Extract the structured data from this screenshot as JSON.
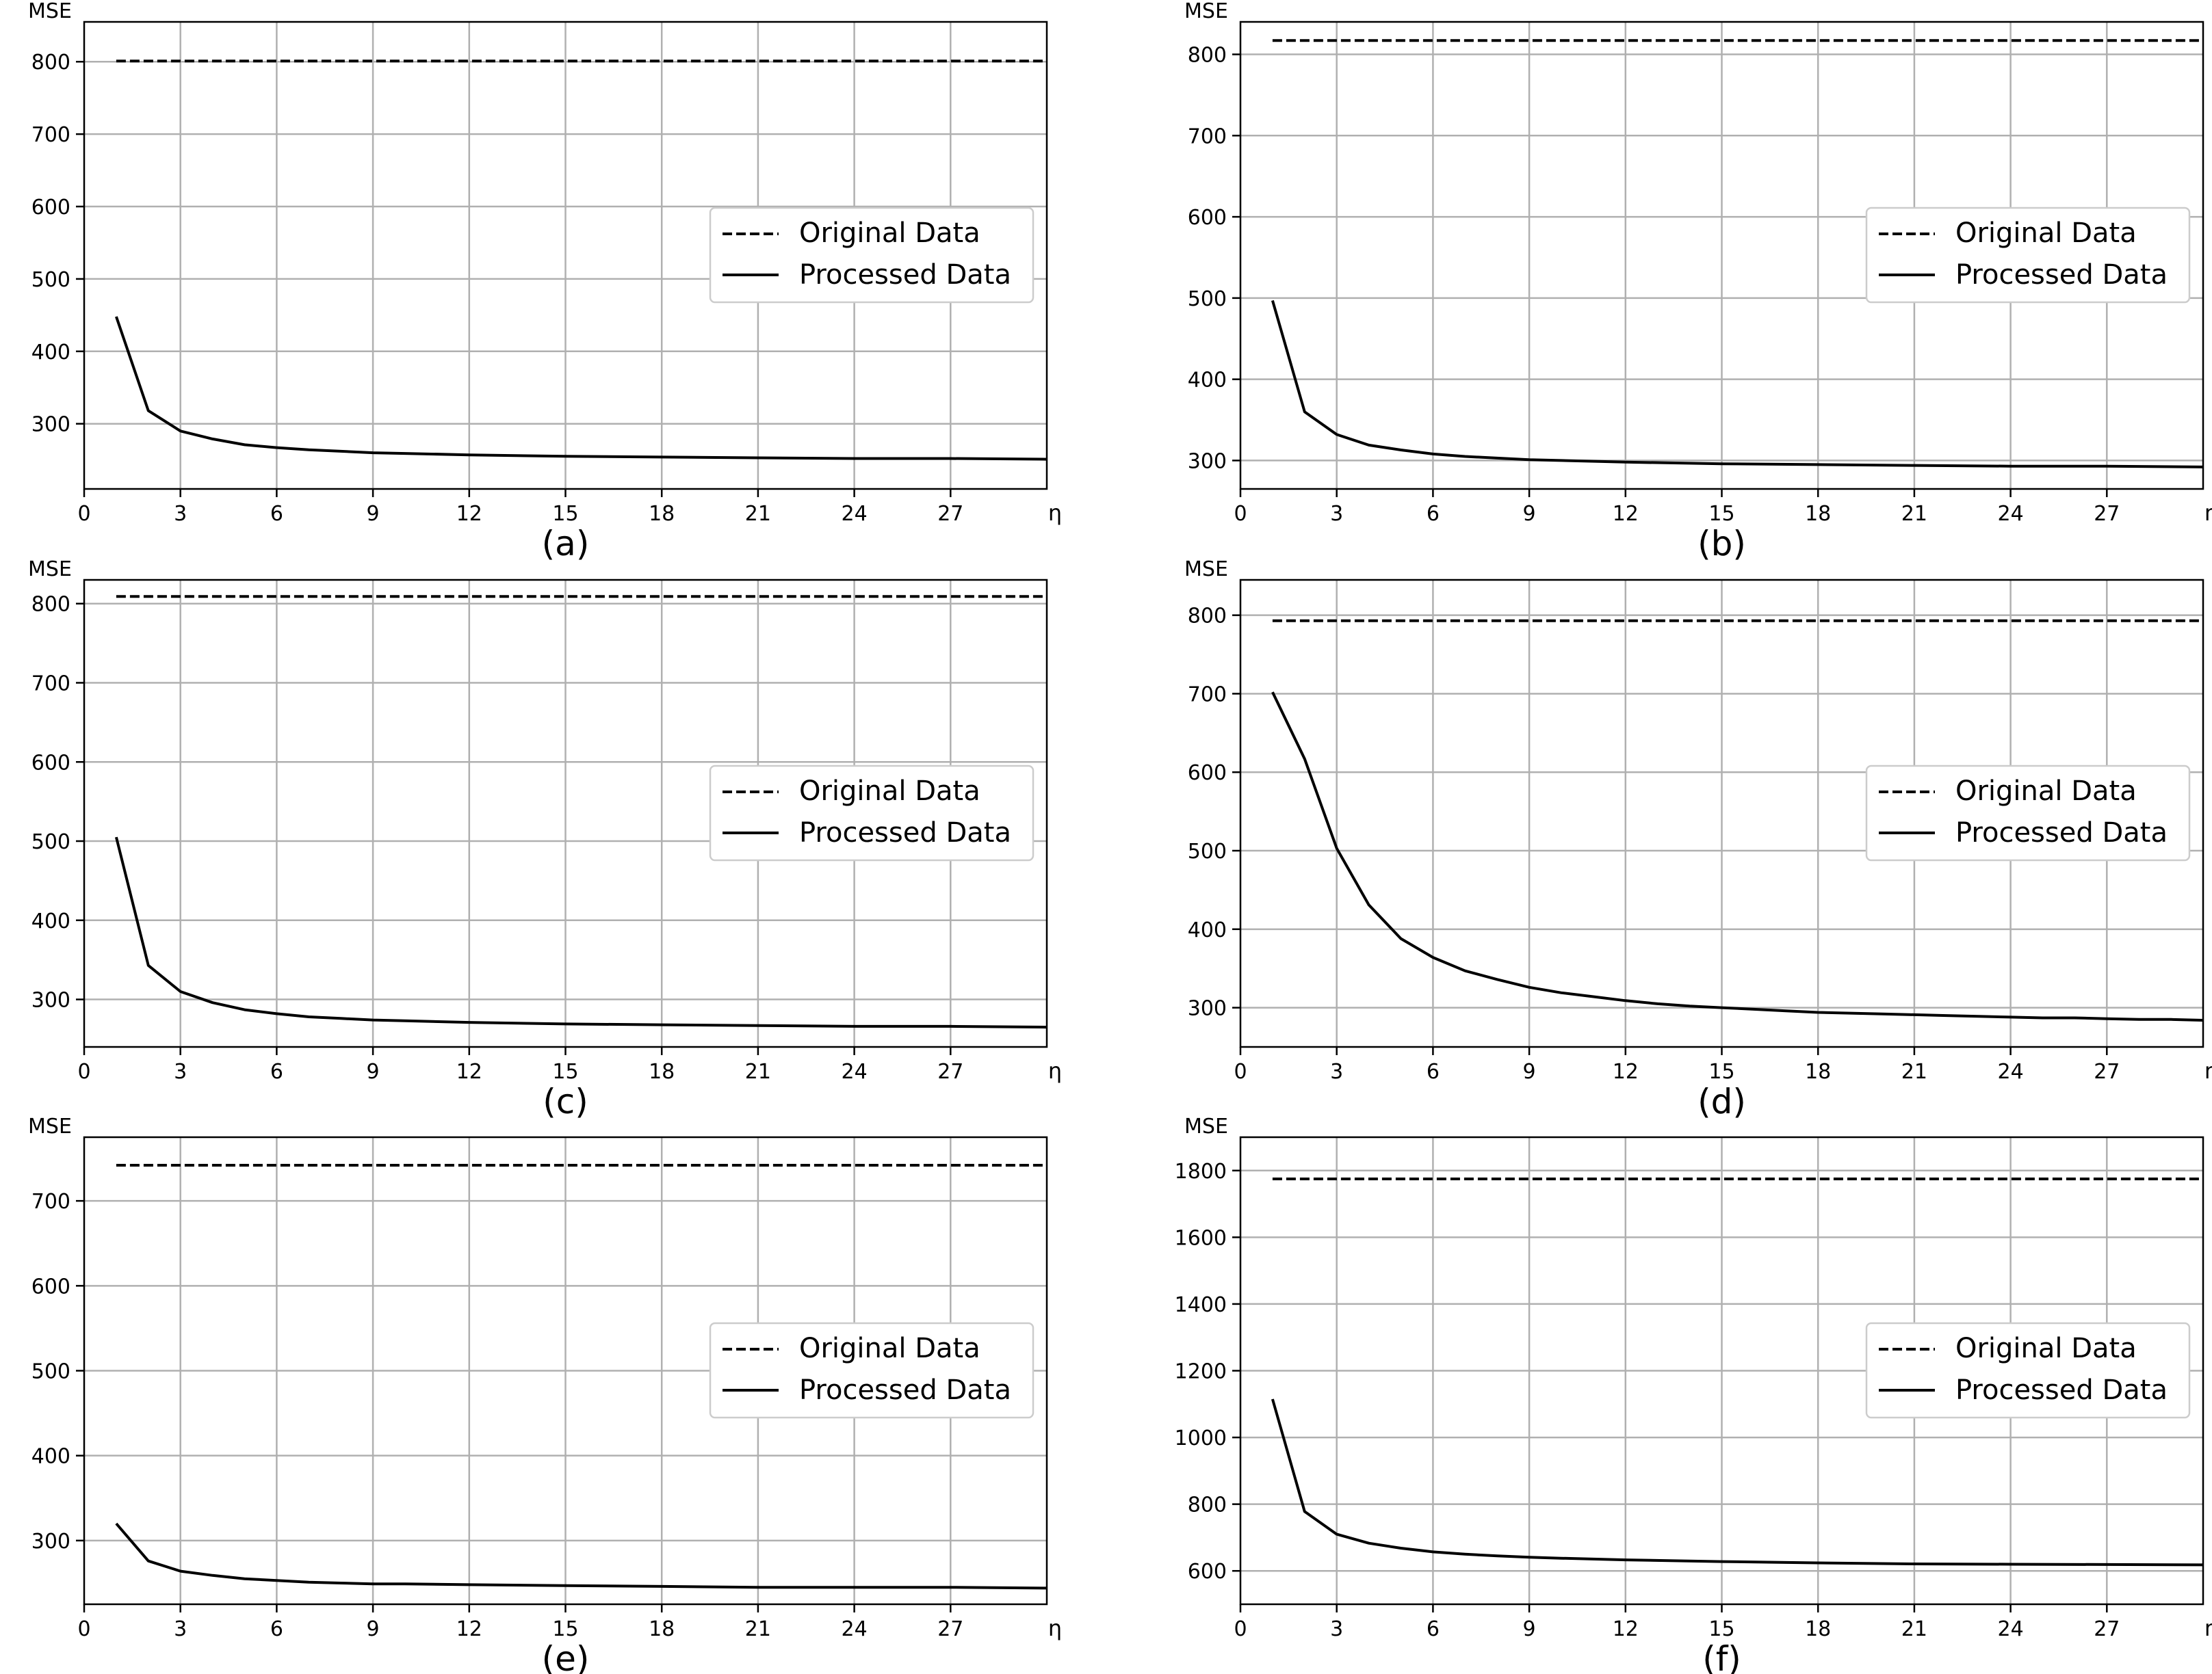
{
  "figure": {
    "description_labels": [
      "(a)",
      "(b)",
      "(c)",
      "(d)",
      "(e)",
      "(f)"
    ]
  },
  "legend": {
    "original": "Original Data",
    "processed": "Processed Data"
  },
  "colors": {
    "line": "#000000",
    "grid": "#b0b0b0",
    "legend_border": "#cccccc",
    "background": "#ffffff"
  },
  "chart_data": [
    {
      "type": "line",
      "caption": "(a)",
      "ylabel": "MSE",
      "xlabel": "η",
      "xlim": [
        0,
        30
      ],
      "ylim": [
        210,
        855
      ],
      "xticks": [
        0,
        3,
        6,
        9,
        12,
        15,
        18,
        21,
        24,
        27
      ],
      "yticks": [
        300,
        400,
        500,
        600,
        700,
        800
      ],
      "legend_position": "center-right",
      "series": [
        {
          "name": "Original Data",
          "style": "dashed",
          "x": [
            1,
            30
          ],
          "values": [
            801,
            801
          ]
        },
        {
          "name": "Processed Data",
          "style": "solid",
          "x": [
            1,
            2,
            3,
            4,
            5,
            6,
            7,
            8,
            9,
            10,
            12,
            15,
            18,
            21,
            24,
            27,
            30
          ],
          "values": [
            448,
            318,
            290,
            279,
            271,
            267,
            264,
            262,
            260,
            259,
            257,
            255,
            254,
            253,
            252,
            252,
            251
          ]
        }
      ]
    },
    {
      "type": "line",
      "caption": "(b)",
      "ylabel": "MSE",
      "xlabel": "η",
      "xlim": [
        0,
        30
      ],
      "ylim": [
        265,
        840
      ],
      "xticks": [
        0,
        3,
        6,
        9,
        12,
        15,
        18,
        21,
        24,
        27
      ],
      "yticks": [
        300,
        400,
        500,
        600,
        700,
        800
      ],
      "legend_position": "center-right",
      "series": [
        {
          "name": "Original Data",
          "style": "dashed",
          "x": [
            1,
            30
          ],
          "values": [
            817,
            817
          ]
        },
        {
          "name": "Processed Data",
          "style": "solid",
          "x": [
            1,
            2,
            3,
            4,
            5,
            6,
            7,
            8,
            9,
            10,
            12,
            15,
            18,
            21,
            24,
            27,
            30
          ],
          "values": [
            497,
            360,
            332,
            319,
            313,
            308,
            305,
            303,
            301,
            300,
            298,
            296,
            295,
            294,
            293,
            293,
            292
          ]
        }
      ]
    },
    {
      "type": "line",
      "caption": "(c)",
      "ylabel": "MSE",
      "xlabel": "η",
      "xlim": [
        0,
        30
      ],
      "ylim": [
        240,
        830
      ],
      "xticks": [
        0,
        3,
        6,
        9,
        12,
        15,
        18,
        21,
        24,
        27
      ],
      "yticks": [
        300,
        400,
        500,
        600,
        700,
        800
      ],
      "legend_position": "center-right",
      "series": [
        {
          "name": "Original Data",
          "style": "dashed",
          "x": [
            1,
            30
          ],
          "values": [
            809,
            809
          ]
        },
        {
          "name": "Processed Data",
          "style": "solid",
          "x": [
            1,
            2,
            3,
            4,
            5,
            6,
            7,
            8,
            9,
            10,
            12,
            15,
            18,
            21,
            24,
            27,
            30
          ],
          "values": [
            505,
            343,
            310,
            296,
            287,
            282,
            278,
            276,
            274,
            273,
            271,
            269,
            268,
            267,
            266,
            266,
            265
          ]
        }
      ]
    },
    {
      "type": "line",
      "caption": "(d)",
      "ylabel": "MSE",
      "xlabel": "η",
      "xlim": [
        0,
        30
      ],
      "ylim": [
        250,
        845
      ],
      "xticks": [
        0,
        3,
        6,
        9,
        12,
        15,
        18,
        21,
        24,
        27
      ],
      "yticks": [
        300,
        400,
        500,
        600,
        700,
        800
      ],
      "legend_position": "center-right",
      "series": [
        {
          "name": "Original Data",
          "style": "dashed",
          "x": [
            1,
            30
          ],
          "values": [
            793,
            793
          ]
        },
        {
          "name": "Processed Data",
          "style": "solid",
          "x": [
            1,
            2,
            3,
            4,
            5,
            6,
            7,
            8,
            9,
            10,
            11,
            12,
            13,
            14,
            15,
            16,
            17,
            18,
            19,
            20,
            21,
            22,
            23,
            24,
            25,
            26,
            27,
            28,
            29,
            30
          ],
          "values": [
            702,
            617,
            503,
            431,
            388,
            364,
            347,
            336,
            326,
            319,
            314,
            309,
            305,
            302,
            300,
            298,
            296,
            294,
            293,
            292,
            291,
            290,
            289,
            288,
            287,
            287,
            286,
            285,
            285,
            284
          ]
        }
      ]
    },
    {
      "type": "line",
      "caption": "(e)",
      "ylabel": "MSE",
      "xlabel": "η",
      "xlim": [
        0,
        30
      ],
      "ylim": [
        225,
        775
      ],
      "xticks": [
        0,
        3,
        6,
        9,
        12,
        15,
        18,
        21,
        24,
        27
      ],
      "yticks": [
        300,
        400,
        500,
        600,
        700
      ],
      "legend_position": "center-right",
      "series": [
        {
          "name": "Original Data",
          "style": "dashed",
          "x": [
            1,
            30
          ],
          "values": [
            742,
            742
          ]
        },
        {
          "name": "Processed Data",
          "style": "solid",
          "x": [
            1,
            2,
            3,
            4,
            5,
            6,
            7,
            8,
            9,
            10,
            12,
            15,
            18,
            21,
            24,
            27,
            30
          ],
          "values": [
            320,
            276,
            264,
            259,
            255,
            253,
            251,
            250,
            249,
            249,
            248,
            247,
            246,
            245,
            245,
            245,
            244
          ]
        }
      ]
    },
    {
      "type": "line",
      "caption": "(f)",
      "ylabel": "MSE",
      "xlabel": "η",
      "xlim": [
        0,
        30
      ],
      "ylim": [
        500,
        1900
      ],
      "xticks": [
        0,
        3,
        6,
        9,
        12,
        15,
        18,
        21,
        24,
        27
      ],
      "yticks": [
        600,
        800,
        1000,
        1200,
        1400,
        1600,
        1800
      ],
      "legend_position": "center-right",
      "series": [
        {
          "name": "Original Data",
          "style": "dashed",
          "x": [
            1,
            30
          ],
          "values": [
            1775,
            1775
          ]
        },
        {
          "name": "Processed Data",
          "style": "solid",
          "x": [
            1,
            2,
            3,
            4,
            5,
            6,
            7,
            8,
            9,
            10,
            12,
            15,
            18,
            21,
            24,
            27,
            30
          ],
          "values": [
            1115,
            778,
            710,
            683,
            668,
            657,
            650,
            645,
            641,
            638,
            633,
            628,
            624,
            621,
            620,
            619,
            618
          ]
        }
      ]
    }
  ]
}
